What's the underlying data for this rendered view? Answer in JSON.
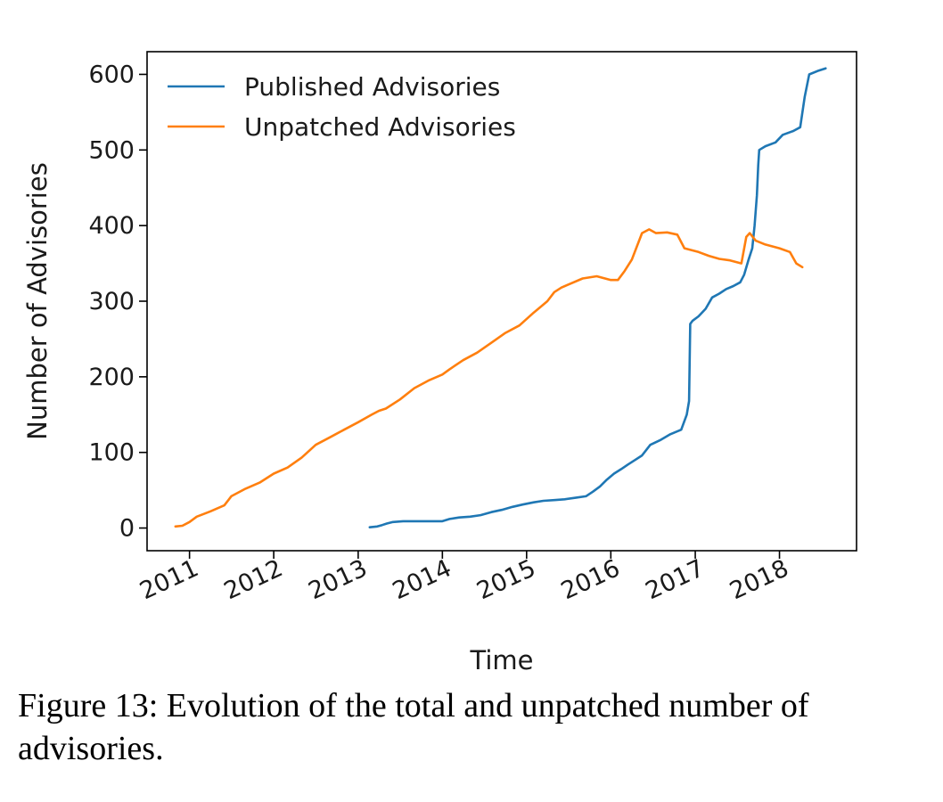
{
  "caption": "Figure 13: Evolution of the total and unpatched number of advisories.",
  "chart_data": {
    "type": "line",
    "xlabel": "Time",
    "ylabel": "Number of Advisories",
    "x_ticks": [
      "2011",
      "2012",
      "2013",
      "2014",
      "2015",
      "2016",
      "2017",
      "2018"
    ],
    "y_ticks": [
      0,
      100,
      200,
      300,
      400,
      500,
      600
    ],
    "xlim": [
      "2010-07-01",
      "2018-12-01"
    ],
    "ylim": [
      -30,
      630
    ],
    "legend_position": "top-left",
    "series": [
      {
        "name": "Published Advisories",
        "color": "#1f77b4",
        "x": [
          "2013-02-20",
          "2013-03-25",
          "2013-04-15",
          "2013-05-05",
          "2013-06-01",
          "2013-07-15",
          "2013-09-01",
          "2013-11-01",
          "2014-01-01",
          "2014-02-01",
          "2014-03-15",
          "2014-05-01",
          "2014-06-15",
          "2014-08-01",
          "2014-09-15",
          "2014-11-01",
          "2014-12-15",
          "2015-02-01",
          "2015-03-15",
          "2015-05-01",
          "2015-06-15",
          "2015-08-01",
          "2015-09-15",
          "2015-10-15",
          "2015-11-15",
          "2015-12-15",
          "2016-01-15",
          "2016-02-15",
          "2016-03-15",
          "2016-04-15",
          "2016-05-15",
          "2016-06-20",
          "2016-08-01",
          "2016-09-15",
          "2016-11-01",
          "2016-11-25",
          "2016-12-05",
          "2016-12-10",
          "2016-12-20",
          "2017-01-15",
          "2017-02-15",
          "2017-03-15",
          "2017-04-15",
          "2017-05-15",
          "2017-06-15",
          "2017-07-15",
          "2017-08-01",
          "2017-08-20",
          "2017-09-05",
          "2017-09-15",
          "2017-09-25",
          "2017-10-01",
          "2017-10-05",
          "2017-11-01",
          "2017-12-15",
          "2018-01-15",
          "2018-03-01",
          "2018-04-01",
          "2018-04-20",
          "2018-05-10",
          "2018-06-20",
          "2018-07-20"
        ],
        "values": [
          1,
          2,
          4,
          6,
          8,
          9,
          9,
          9,
          9,
          12,
          14,
          15,
          17,
          21,
          24,
          28,
          31,
          34,
          36,
          37,
          38,
          40,
          42,
          48,
          55,
          64,
          72,
          78,
          84,
          90,
          96,
          110,
          116,
          124,
          130,
          150,
          168,
          270,
          274,
          280,
          290,
          305,
          310,
          316,
          320,
          325,
          335,
          355,
          370,
          400,
          440,
          480,
          500,
          505,
          510,
          520,
          525,
          530,
          570,
          600,
          605,
          608
        ]
      },
      {
        "name": "Unpatched Advisories",
        "color": "#ff7f0e",
        "x": [
          "2010-11-01",
          "2010-12-01",
          "2011-01-01",
          "2011-02-01",
          "2011-04-01",
          "2011-06-01",
          "2011-07-01",
          "2011-09-01",
          "2011-11-01",
          "2012-01-01",
          "2012-03-01",
          "2012-05-01",
          "2012-07-01",
          "2012-09-01",
          "2012-11-01",
          "2013-01-01",
          "2013-03-01",
          "2013-04-01",
          "2013-05-01",
          "2013-07-01",
          "2013-09-01",
          "2013-11-01",
          "2014-01-01",
          "2014-02-01",
          "2014-04-01",
          "2014-06-01",
          "2014-08-01",
          "2014-10-01",
          "2014-12-01",
          "2015-02-01",
          "2015-03-01",
          "2015-04-01",
          "2015-05-01",
          "2015-06-01",
          "2015-07-01",
          "2015-09-01",
          "2015-11-01",
          "2016-01-01",
          "2016-02-01",
          "2016-03-01",
          "2016-04-01",
          "2016-05-15",
          "2016-06-15",
          "2016-07-15",
          "2016-09-01",
          "2016-10-15",
          "2016-11-15",
          "2017-01-15",
          "2017-03-01",
          "2017-04-15",
          "2017-06-01",
          "2017-07-20",
          "2017-08-10",
          "2017-08-25",
          "2017-09-20",
          "2017-11-01",
          "2018-01-01",
          "2018-02-15",
          "2018-03-15",
          "2018-04-10"
        ],
        "values": [
          2,
          3,
          8,
          15,
          22,
          30,
          42,
          52,
          60,
          72,
          80,
          93,
          110,
          120,
          130,
          140,
          150,
          155,
          158,
          170,
          185,
          195,
          203,
          210,
          222,
          232,
          245,
          258,
          268,
          285,
          292,
          300,
          312,
          318,
          322,
          330,
          333,
          328,
          328,
          340,
          355,
          390,
          395,
          390,
          391,
          388,
          370,
          365,
          360,
          356,
          354,
          350,
          385,
          390,
          380,
          375,
          370,
          365,
          350,
          345
        ]
      }
    ]
  }
}
